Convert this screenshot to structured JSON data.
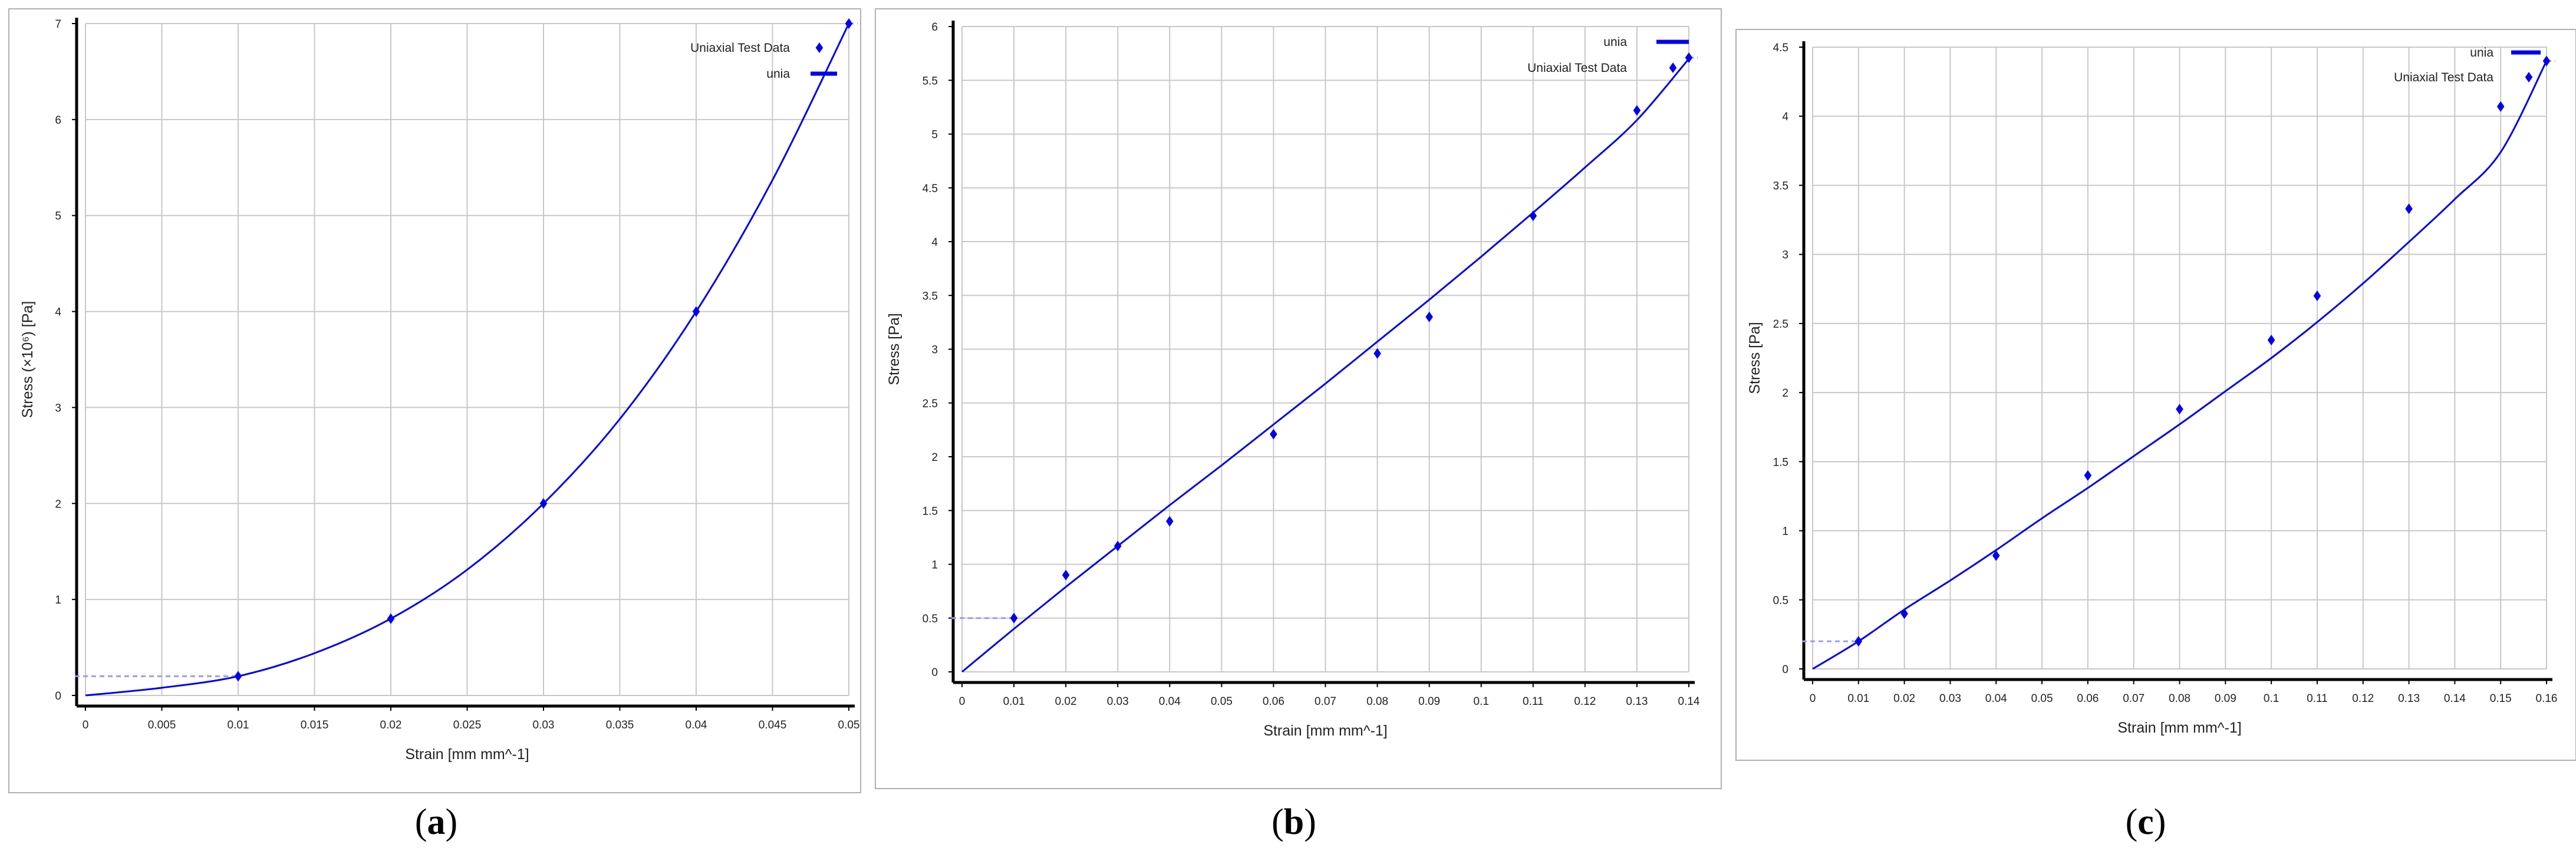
{
  "captions": [
    "a",
    "b",
    "c"
  ],
  "colors": {
    "series": "#0000ee",
    "extrapolation": "#9a9aff",
    "grid": "#c8c8c8",
    "axis": "#000000"
  },
  "chart_data": [
    {
      "type": "line",
      "xlabel": "Strain  [mm mm^-1]",
      "ylabel": "Stress  (×10⁶)  [Pa]",
      "xlim": [
        0,
        0.05
      ],
      "ylim": [
        0,
        7
      ],
      "xticks": [
        "0",
        "0.005",
        "0.01",
        "0.015",
        "0.02",
        "0.025",
        "0.03",
        "0.035",
        "0.04",
        "0.045",
        "0.05"
      ],
      "yticks": [
        "0",
        "1",
        "2",
        "3",
        "4",
        "5",
        "6",
        "7"
      ],
      "legend": [
        "Uniaxial Test Data",
        "unia"
      ],
      "legend_position": "top-right",
      "grid": true,
      "series": [
        {
          "name": "Uniaxial Test Data",
          "kind": "markers",
          "x": [
            0.01,
            0.02,
            0.03,
            0.04,
            0.05
          ],
          "y": [
            0.2,
            0.8,
            2.0,
            4.0,
            7.0
          ]
        },
        {
          "name": "unia",
          "kind": "line",
          "x": [
            0,
            0.005,
            0.01,
            0.015,
            0.02,
            0.025,
            0.03,
            0.035,
            0.04,
            0.045,
            0.05
          ],
          "y": [
            0,
            0.08,
            0.2,
            0.44,
            0.8,
            1.31,
            2.0,
            2.88,
            4.0,
            5.37,
            7.0
          ]
        }
      ],
      "extrapolation_y": 0.2
    },
    {
      "type": "line",
      "xlabel": "Strain  [mm mm^-1]",
      "ylabel": "Stress  [Pa]",
      "xlim": [
        0,
        0.14
      ],
      "ylim": [
        0,
        6
      ],
      "xticks": [
        "0",
        "0.01",
        "0.02",
        "0.03",
        "0.04",
        "0.05",
        "0.06",
        "0.07",
        "0.08",
        "0.09",
        "0.1",
        "0.11",
        "0.12",
        "0.13",
        "0.14"
      ],
      "yticks": [
        "0",
        "0.5",
        "1",
        "1.5",
        "2",
        "2.5",
        "3",
        "3.5",
        "4",
        "4.5",
        "5",
        "5.5",
        "6"
      ],
      "legend": [
        "unia",
        "Uniaxial Test Data"
      ],
      "legend_position": "top-right",
      "grid": true,
      "series": [
        {
          "name": "Uniaxial Test Data",
          "kind": "markers",
          "x": [
            0.01,
            0.02,
            0.03,
            0.04,
            0.06,
            0.08,
            0.09,
            0.11,
            0.13,
            0.14
          ],
          "y": [
            0.5,
            0.9,
            1.17,
            1.4,
            2.21,
            2.96,
            3.3,
            4.24,
            5.22,
            5.71
          ]
        },
        {
          "name": "unia",
          "kind": "line",
          "x": [
            0,
            0.01,
            0.02,
            0.03,
            0.04,
            0.05,
            0.06,
            0.07,
            0.08,
            0.09,
            0.1,
            0.11,
            0.12,
            0.13,
            0.14
          ],
          "y": [
            0,
            0.4,
            0.79,
            1.17,
            1.55,
            1.92,
            2.3,
            2.68,
            3.07,
            3.46,
            3.86,
            4.27,
            4.69,
            5.13,
            5.7
          ]
        }
      ],
      "extrapolation_y": 0.5
    },
    {
      "type": "line",
      "xlabel": "Strain  [mm mm^-1]",
      "ylabel": "Stress  [Pa]",
      "xlim": [
        0,
        0.16
      ],
      "ylim": [
        0,
        4.5
      ],
      "xticks": [
        "0",
        "0.01",
        "0.02",
        "0.03",
        "0.04",
        "0.05",
        "0.06",
        "0.07",
        "0.08",
        "0.09",
        "0.1",
        "0.11",
        "0.12",
        "0.13",
        "0.14",
        "0.15",
        "0.16"
      ],
      "yticks": [
        "0",
        "0.5",
        "1",
        "1.5",
        "2",
        "2.5",
        "3",
        "3.5",
        "4",
        "4.5"
      ],
      "legend": [
        "unia",
        "Uniaxial Test Data"
      ],
      "legend_position": "top-right",
      "grid": true,
      "series": [
        {
          "name": "Uniaxial Test Data",
          "kind": "markers",
          "x": [
            0.01,
            0.02,
            0.04,
            0.06,
            0.08,
            0.1,
            0.11,
            0.13,
            0.15,
            0.16
          ],
          "y": [
            0.2,
            0.4,
            0.82,
            1.4,
            1.88,
            2.38,
            2.7,
            3.33,
            4.07,
            4.4
          ]
        },
        {
          "name": "unia",
          "kind": "line",
          "x": [
            0,
            0.01,
            0.02,
            0.03,
            0.04,
            0.05,
            0.06,
            0.07,
            0.08,
            0.09,
            0.1,
            0.11,
            0.12,
            0.13,
            0.14,
            0.15,
            0.16
          ],
          "y": [
            0,
            0.2,
            0.43,
            0.64,
            0.86,
            1.09,
            1.31,
            1.54,
            1.77,
            2.01,
            2.25,
            2.51,
            2.79,
            3.09,
            3.4,
            3.74,
            4.4
          ]
        }
      ],
      "extrapolation_y": 0.2
    }
  ]
}
